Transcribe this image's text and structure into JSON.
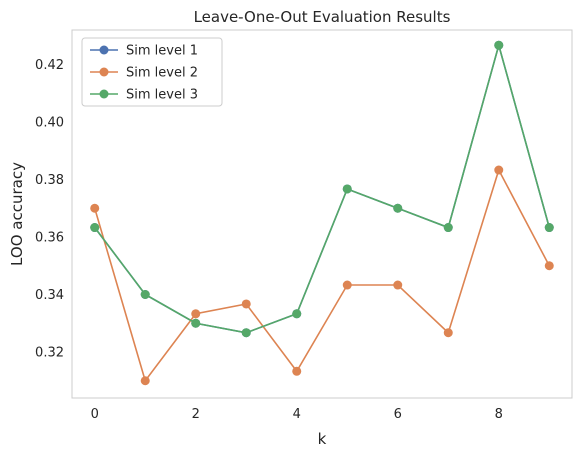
{
  "chart_data": {
    "type": "line",
    "title": "Leave-One-Out Evaluation Results",
    "xlabel": "k",
    "ylabel": "LOO accuracy",
    "x": [
      0,
      1,
      2,
      3,
      4,
      5,
      6,
      7,
      8,
      9
    ],
    "xticks": [
      "0",
      "2",
      "4",
      "6",
      "8"
    ],
    "yticks": [
      "0.32",
      "0.34",
      "0.36",
      "0.38",
      "0.40",
      "0.42"
    ],
    "xlim": [
      -0.45,
      9.45
    ],
    "ylim": [
      0.304,
      0.432
    ],
    "grid": false,
    "legend_position": "upper-left",
    "series": [
      {
        "name": "Sim level 1",
        "color": "#4c72b0",
        "values": [
          0.3633,
          0.34,
          0.33,
          0.3267,
          0.3333,
          0.3767,
          0.37,
          0.3633,
          0.4267,
          0.3633
        ]
      },
      {
        "name": "Sim level 2",
        "color": "#dd8452",
        "values": [
          0.37,
          0.31,
          0.3333,
          0.3367,
          0.3133,
          0.3433,
          0.3433,
          0.3267,
          0.3833,
          0.35
        ]
      },
      {
        "name": "Sim level 3",
        "color": "#55a868",
        "values": [
          0.3633,
          0.34,
          0.33,
          0.3267,
          0.3333,
          0.3767,
          0.37,
          0.3633,
          0.4267,
          0.3633
        ]
      }
    ]
  }
}
